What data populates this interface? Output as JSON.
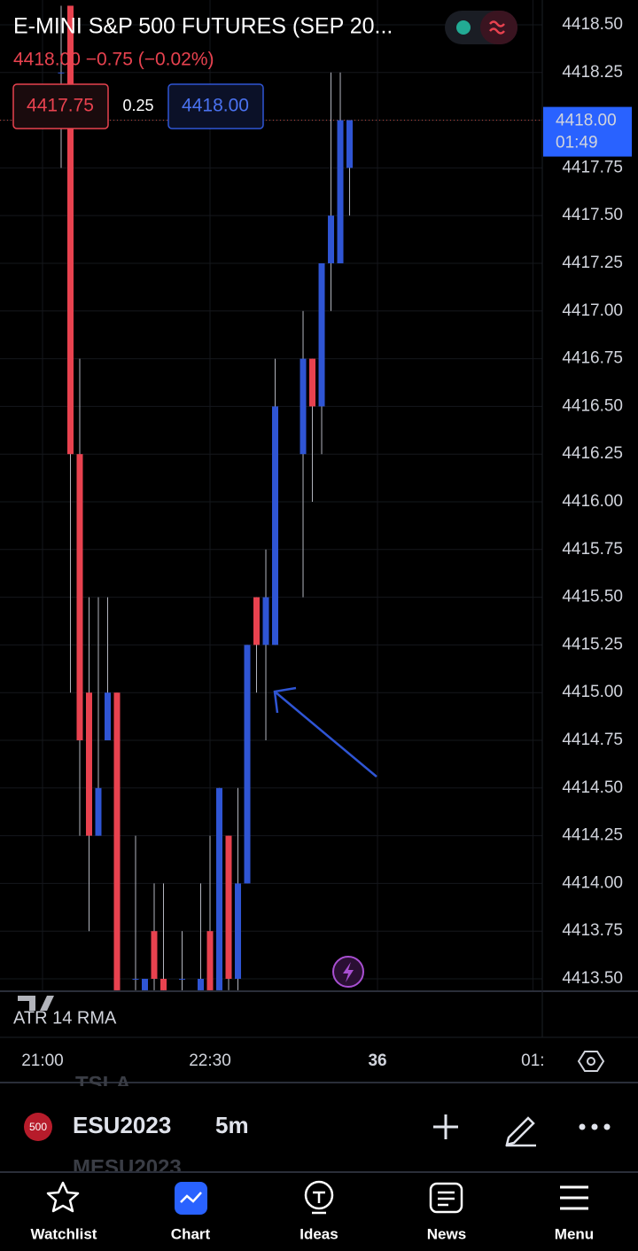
{
  "chart_data": {
    "type": "candlestick",
    "title": "E-MINI S&P 500 FUTURES (SEP 20...",
    "quote": "4418.00 −0.75 (−0.02%)",
    "bid": "4417.75",
    "spread": "0.25",
    "ask": "4418.00",
    "indicator": "ATR 14 RMA",
    "up_color": "#2f55d4",
    "down_color": "#e8424f",
    "grid": true,
    "ylim": [
      4413.435,
      4418.63
    ],
    "yticks": [
      {
        "value": 4418.5,
        "label": "4418.50"
      },
      4418.25,
      {
        "value": 4418.0,
        "label": "4418.00"
      },
      4417.75,
      {
        "value": 4417.5,
        "label": "4417.50"
      },
      4417.25,
      {
        "value": 4417.0,
        "label": "4417.00"
      },
      4416.75,
      {
        "value": 4416.5,
        "label": "4416.50"
      },
      4416.25,
      {
        "value": 4416.0,
        "label": "4416.00"
      },
      4415.75,
      {
        "value": 4415.5,
        "label": "4415.50"
      },
      4415.25,
      {
        "value": 4415.0,
        "label": "4415.00"
      },
      4414.75,
      {
        "value": 4414.5,
        "label": "4414.50"
      },
      4414.25,
      {
        "value": 4414.0,
        "label": "4414.00"
      },
      4413.75,
      {
        "value": 4413.5,
        "label": "4413.50"
      }
    ],
    "xlim": [
      -4.57,
      53.71
    ],
    "xticks": [
      {
        "value": 0,
        "label": "21:00"
      },
      {
        "value": 18,
        "label": "22:30"
      },
      36,
      {
        "value": 52.7,
        "label": "01:"
      }
    ],
    "last_price": {
      "value": 4418.0,
      "label": "4418.00"
    },
    "countdown": "01:49",
    "x": [
      2,
      3,
      4,
      5,
      6,
      7,
      8,
      10,
      11,
      12,
      13,
      15,
      17,
      18,
      19,
      20,
      21,
      22,
      23,
      24,
      25,
      28,
      29,
      30,
      31,
      32,
      33
    ],
    "open": [
      4418.25,
      4418.6,
      4416.25,
      4415.0,
      4414.25,
      4414.75,
      4415.0,
      4413.5,
      4413.44,
      4413.75,
      4413.5,
      4413.5,
      4413.44,
      4413.75,
      4413.44,
      4414.25,
      4413.5,
      4414.0,
      4415.5,
      4415.25,
      4415.25,
      4416.25,
      4416.75,
      4416.5,
      4417.25,
      4417.25,
      4417.75
    ],
    "high": [
      4418.6,
      4418.6,
      4416.75,
      4415.5,
      4415.5,
      4415.5,
      4415.0,
      4414.25,
      4413.5,
      4414.0,
      4414.0,
      4413.75,
      4414.0,
      4414.25,
      4414.5,
      4414.25,
      4414.5,
      4415.25,
      4415.5,
      4415.75,
      4416.75,
      4417.0,
      4416.75,
      4417.25,
      4418.25,
      4418.25,
      4418.0
    ],
    "low": [
      4417.75,
      4415.0,
      4414.25,
      4413.75,
      4414.25,
      4414.75,
      4413.44,
      4413.44,
      4413.44,
      4413.44,
      4413.44,
      4413.44,
      4413.44,
      4413.44,
      4413.44,
      4413.44,
      4413.44,
      4414.0,
      4415.0,
      4414.75,
      4415.25,
      4415.5,
      4416.0,
      4416.25,
      4417.0,
      4417.25,
      4417.5
    ],
    "close": [
      4418.25,
      4416.25,
      4414.75,
      4414.25,
      4414.5,
      4415.0,
      4413.44,
      4413.5,
      4413.5,
      4413.5,
      4413.44,
      4413.5,
      4413.5,
      4413.44,
      4414.5,
      4413.5,
      4414.0,
      4415.25,
      4415.25,
      4415.5,
      4416.5,
      4416.75,
      4416.5,
      4417.25,
      4417.5,
      4418.0,
      4418.0
    ]
  },
  "toolbar": {
    "ghost_above": "TSLA",
    "badge": "500",
    "symbol": "ESU2023",
    "interval": "5m",
    "ghost_below": "MESU2023"
  },
  "nav": [
    "Watchlist",
    "Chart",
    "Ideas",
    "News",
    "Menu"
  ]
}
